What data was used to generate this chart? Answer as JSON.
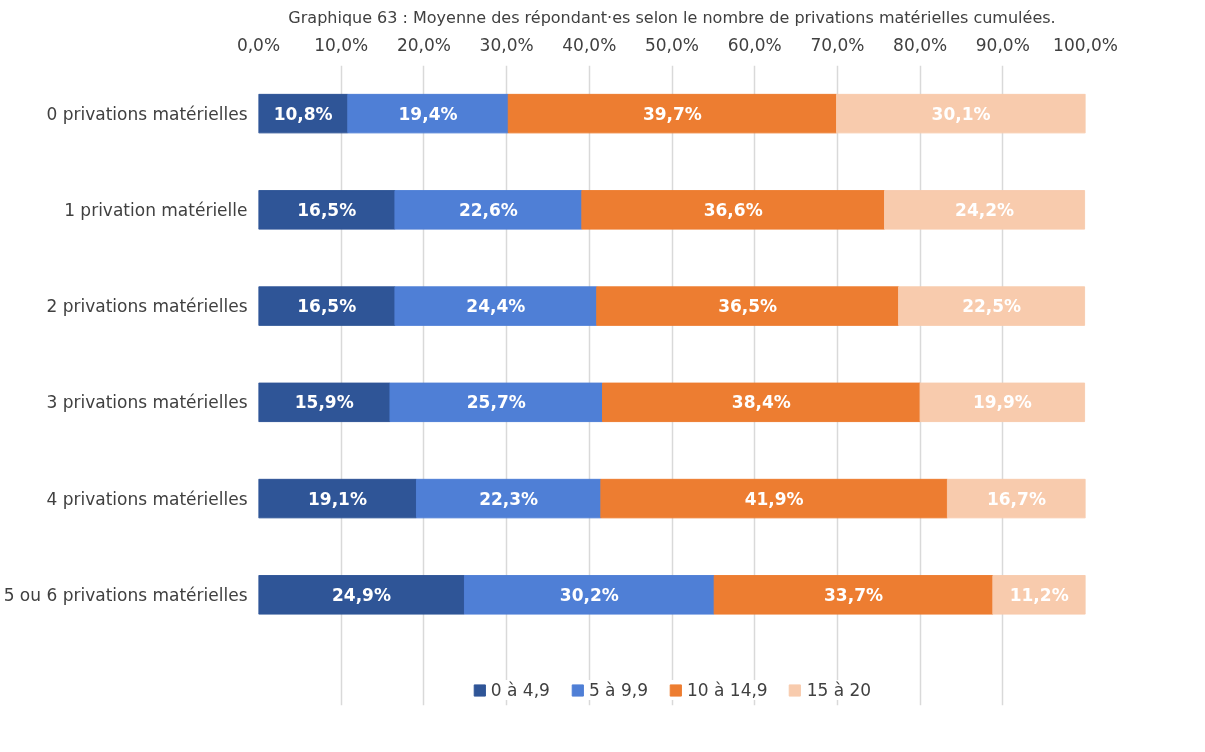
{
  "chart_data": {
    "type": "bar",
    "orientation": "horizontal",
    "stacked": true,
    "title": "Graphique 63 : Moyenne des répondant·es selon le nombre de privations matérielles cumulées.",
    "categories": [
      "0 privations matérielles",
      "1 privation matérielle",
      "2 privations matérielles",
      "3 privations matérielles",
      "4 privations matérielles",
      "5 ou 6 privations matérielles"
    ],
    "series": [
      {
        "name": "0 à 4,9",
        "color": "#2f5597",
        "values": [
          10.8,
          16.5,
          16.5,
          15.9,
          19.1,
          24.9
        ],
        "value_labels": [
          "10,8%",
          "16,5%",
          "16,5%",
          "15,9%",
          "19,1%",
          "24,9%"
        ]
      },
      {
        "name": "5 à 9,9",
        "color": "#4f7fd6",
        "values": [
          19.4,
          22.6,
          24.4,
          25.7,
          22.3,
          30.2
        ],
        "value_labels": [
          "19,4%",
          "22,6%",
          "24,4%",
          "25,7%",
          "22,3%",
          "30,2%"
        ]
      },
      {
        "name": "10 à 14,9",
        "color": "#ed7d31",
        "values": [
          39.7,
          36.6,
          36.5,
          38.4,
          41.9,
          33.7
        ],
        "value_labels": [
          "39,7%",
          "36,6%",
          "36,5%",
          "38,4%",
          "41,9%",
          "33,7%"
        ]
      },
      {
        "name": "15 à 20",
        "color": "#f8cbad",
        "values": [
          30.1,
          24.2,
          22.5,
          19.9,
          16.7,
          11.2
        ],
        "value_labels": [
          "30,1%",
          "24,2%",
          "22,5%",
          "19,9%",
          "16,7%",
          "11,2%"
        ]
      }
    ],
    "xlim": [
      0,
      100
    ],
    "xticks": [
      {
        "value": 0,
        "label": "0,0%"
      },
      {
        "value": 10,
        "label": "10,0%"
      },
      {
        "value": 20,
        "label": "20,0%"
      },
      {
        "value": 30,
        "label": "30,0%"
      },
      {
        "value": 40,
        "label": "40,0%"
      },
      {
        "value": 50,
        "label": "50,0%"
      },
      {
        "value": 60,
        "label": "60,0%"
      },
      {
        "value": 70,
        "label": "70,0%"
      },
      {
        "value": 80,
        "label": "80,0%"
      },
      {
        "value": 90,
        "label": "90,0%"
      },
      {
        "value": 100,
        "label": "100,0%"
      }
    ],
    "grid": "x",
    "legend": "bottom"
  }
}
